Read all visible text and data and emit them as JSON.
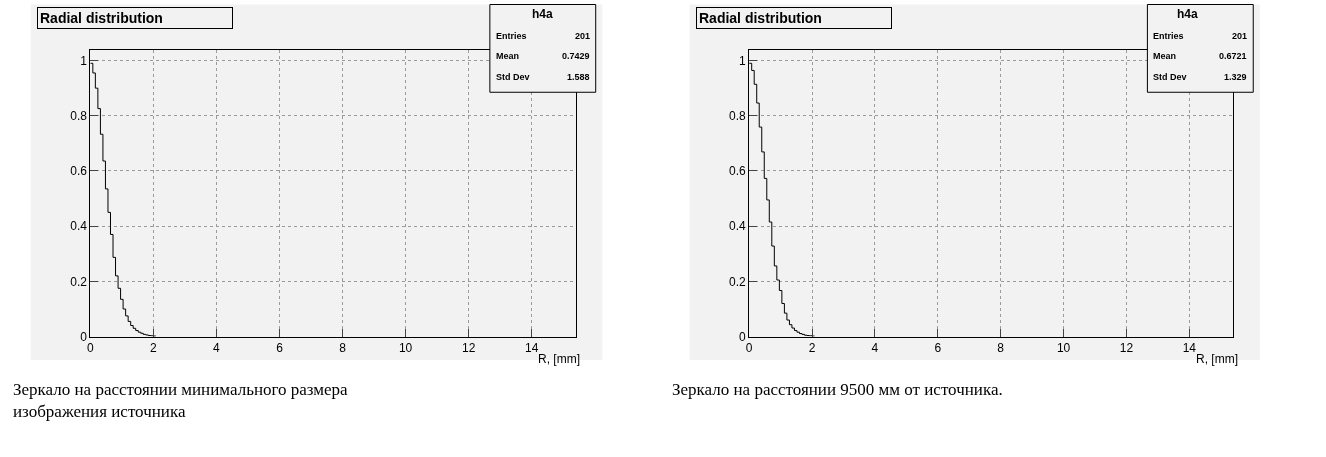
{
  "chart_data": [
    {
      "type": "histogram",
      "title": "Radial distribution",
      "xlabel": "R, [mm]",
      "bins": [
        0,
        0.08,
        0.16,
        0.24,
        0.32,
        0.4,
        0.48,
        0.56,
        0.64,
        0.72,
        0.8,
        0.88,
        0.96,
        1.04,
        1.12,
        1.2,
        1.28,
        1.36,
        1.44,
        1.52,
        1.6,
        1.68,
        1.76,
        1.84,
        1.92,
        2.0,
        2.08
      ],
      "values": [
        0.99,
        0.955,
        0.9,
        0.826,
        0.733,
        0.636,
        0.535,
        0.45,
        0.37,
        0.287,
        0.22,
        0.175,
        0.135,
        0.1,
        0.075,
        0.055,
        0.04,
        0.03,
        0.022,
        0.016,
        0.012,
        0.008,
        0.006,
        0.004,
        0.003,
        0.002
      ],
      "color": "#000000",
      "xlim": [
        0,
        15.4
      ],
      "ylim": [
        0,
        1.04
      ],
      "xticks": [
        0,
        2,
        4,
        6,
        8,
        10,
        12,
        14
      ],
      "yticks": [
        0,
        0.2,
        0.4,
        0.6,
        0.8,
        1
      ],
      "grid": true,
      "annotations": [
        "h4a",
        "Entries",
        "201",
        "Mean",
        "0.7429",
        "Std Dev",
        "1.588",
        "Зеркало на расстоянии минимального размера изображения источника"
      ]
    },
    {
      "type": "histogram",
      "title": "Radial distribution",
      "xlabel": "R, [mm]",
      "bins": [
        0,
        0.08,
        0.16,
        0.24,
        0.32,
        0.4,
        0.48,
        0.56,
        0.64,
        0.72,
        0.8,
        0.88,
        0.96,
        1.04,
        1.12,
        1.2,
        1.28,
        1.36,
        1.44,
        1.52,
        1.6,
        1.68,
        1.76,
        1.84,
        1.92,
        2.0,
        2.08
      ],
      "values": [
        0.99,
        0.964,
        0.914,
        0.846,
        0.759,
        0.669,
        0.573,
        0.495,
        0.415,
        0.328,
        0.256,
        0.205,
        0.167,
        0.12,
        0.085,
        0.06,
        0.043,
        0.031,
        0.022,
        0.016,
        0.011,
        0.008,
        0.005,
        0.004,
        0.003,
        0.002
      ],
      "color": "#000000",
      "xlim": [
        0,
        15.4
      ],
      "ylim": [
        0,
        1.04
      ],
      "xticks": [
        0,
        2,
        4,
        6,
        8,
        10,
        12,
        14
      ],
      "yticks": [
        0,
        0.2,
        0.4,
        0.6,
        0.8,
        1
      ],
      "grid": true,
      "annotations": [
        "h4a",
        "Entries",
        "201",
        "Mean",
        "0.6721",
        "Std Dev",
        "1.329",
        "Зеркало на расстоянии 9500 мм от источника."
      ]
    }
  ]
}
